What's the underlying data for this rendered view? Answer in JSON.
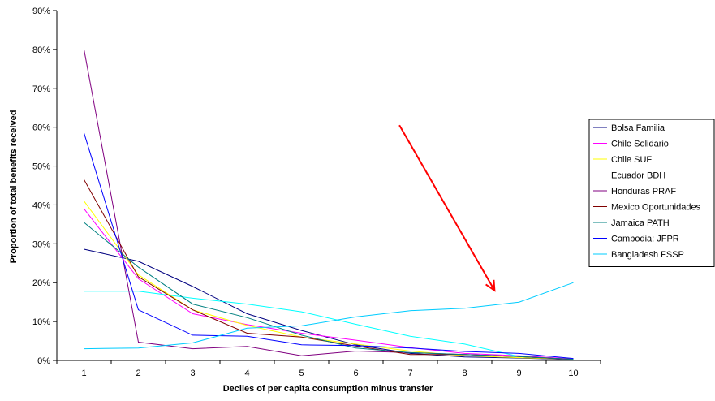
{
  "chart_data": {
    "type": "line",
    "title": "",
    "xlabel": "Deciles of per capita consumption minus transfer",
    "ylabel": "Proportion of total benefits received",
    "x": [
      1,
      2,
      3,
      4,
      5,
      6,
      7,
      8,
      9,
      10
    ],
    "x_tick_labels": [
      "1",
      "2",
      "3",
      "4",
      "5",
      "6",
      "7",
      "8",
      "9",
      "10"
    ],
    "y_tick_labels": [
      "0%",
      "10%",
      "20%",
      "30%",
      "40%",
      "50%",
      "60%",
      "70%",
      "80%",
      "90%"
    ],
    "ylim": [
      0,
      90
    ],
    "y_unit": "%",
    "grid": false,
    "legend_position": "right",
    "series": [
      {
        "name": "Bolsa Familia",
        "color": "#000080",
        "values": [
          28.6,
          25.5,
          19.0,
          12.0,
          7.7,
          4.0,
          1.8,
          0.9,
          0.6,
          0.2
        ]
      },
      {
        "name": "Chile Solidario",
        "color": "#ff00ff",
        "values": [
          39.0,
          21.0,
          12.0,
          9.2,
          7.0,
          5.2,
          3.3,
          1.8,
          1.2,
          0.4
        ]
      },
      {
        "name": "Chile SUF",
        "color": "#ffff00",
        "values": [
          41.0,
          22.0,
          13.0,
          9.0,
          6.0,
          4.2,
          2.4,
          1.2,
          0.7,
          0.3
        ]
      },
      {
        "name": "Ecuador BDH",
        "color": "#00ffff",
        "values": [
          17.8,
          17.8,
          16.0,
          14.5,
          12.5,
          9.3,
          6.2,
          4.2,
          1.0,
          0.3
        ]
      },
      {
        "name": "Honduras PRAF",
        "color": "#800080",
        "values": [
          80.0,
          4.7,
          3.0,
          3.6,
          1.2,
          2.4,
          2.0,
          1.5,
          1.0,
          0.2
        ]
      },
      {
        "name": "Mexico Oportunidades",
        "color": "#800000",
        "values": [
          46.5,
          21.5,
          13.0,
          7.0,
          6.0,
          3.7,
          1.5,
          1.5,
          1.0,
          0.3
        ]
      },
      {
        "name": "Jamaica PATH",
        "color": "#008080",
        "values": [
          35.5,
          24.0,
          14.5,
          11.0,
          6.5,
          3.2,
          2.0,
          1.5,
          1.0,
          0.3
        ]
      },
      {
        "name": "Cambodia: JFPR",
        "color": "#0000ff",
        "values": [
          58.5,
          13.0,
          6.5,
          6.2,
          4.0,
          3.8,
          3.2,
          2.3,
          1.8,
          0.5
        ]
      },
      {
        "name": "Bangladesh FSSP",
        "color": "#00ccff",
        "values": [
          3.0,
          3.2,
          4.5,
          8.3,
          8.9,
          11.2,
          12.8,
          13.4,
          15.0,
          20.0
        ]
      }
    ],
    "annotations": [
      {
        "type": "arrow",
        "color": "#ff0000",
        "from": {
          "x": 6.8,
          "y": 60.5
        },
        "to": {
          "x": 8.55,
          "y": 18.0
        }
      }
    ]
  }
}
